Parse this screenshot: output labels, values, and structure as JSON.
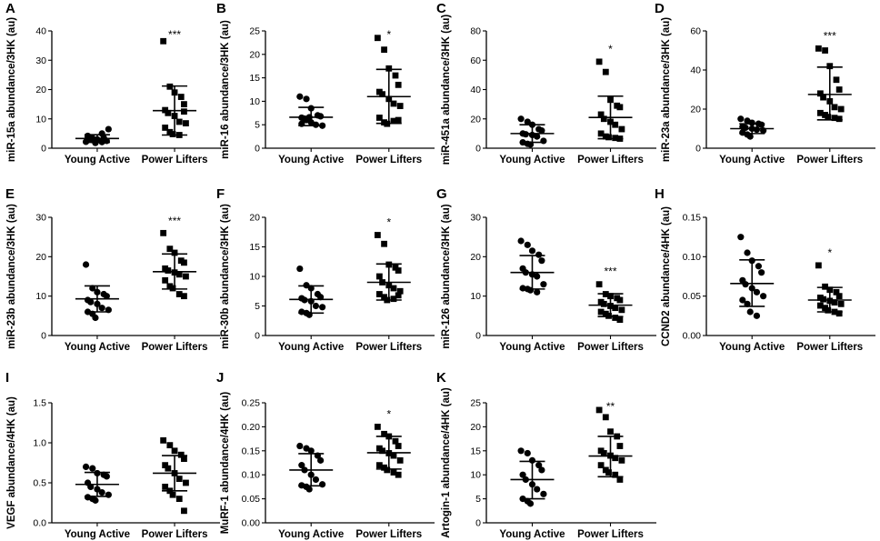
{
  "chart_data": [
    {
      "panel": "A",
      "type": "scatter",
      "ylabel": "miR-15a abundance/3HK (au)",
      "ylim": [
        0,
        40
      ],
      "yticks": [
        "0",
        "10",
        "20",
        "30",
        "40"
      ],
      "categories": [
        "Young Active",
        "Power Lifters"
      ],
      "series": [
        {
          "name": "Young Active",
          "marker": "circle",
          "values": [
            2.2,
            2.8,
            3.0,
            3.5,
            2.5,
            4.0,
            3.2,
            2.7,
            5.0,
            6.5,
            4.2,
            3.4,
            1.8,
            2.1
          ],
          "mean": 3.3,
          "sd_lower": 2.0,
          "sd_upper": 4.6
        },
        {
          "name": "Power Lifters",
          "marker": "square",
          "values": [
            36.5,
            21.0,
            19.0,
            17.5,
            15.0,
            13.0,
            12.0,
            11.0,
            9.0,
            8.5,
            7.0,
            5.5,
            4.8,
            4.5,
            12.5
          ],
          "mean": 12.8,
          "sd_lower": 4.5,
          "sd_upper": 21.2
        }
      ],
      "significance": "***"
    },
    {
      "panel": "B",
      "type": "scatter",
      "ylabel": "miR-16 abundance/3HK (au)",
      "ylim": [
        0,
        25
      ],
      "yticks": [
        "0",
        "5",
        "10",
        "15",
        "20",
        "25"
      ],
      "categories": [
        "Young Active",
        "Power Lifters"
      ],
      "series": [
        {
          "name": "Young Active",
          "marker": "circle",
          "values": [
            11.0,
            10.5,
            8.5,
            7.0,
            6.8,
            6.5,
            6.3,
            5.5,
            5.0,
            4.8,
            5.2,
            6.0,
            6.6
          ],
          "mean": 6.6,
          "sd_lower": 4.8,
          "sd_upper": 8.7
        },
        {
          "name": "Power Lifters",
          "marker": "square",
          "values": [
            23.5,
            21.0,
            17.0,
            15.5,
            13.5,
            12.0,
            11.5,
            10.5,
            9.5,
            9.0,
            6.5,
            5.5,
            5.2,
            5.8,
            6.0
          ],
          "mean": 11.0,
          "sd_lower": 5.3,
          "sd_upper": 16.8
        }
      ],
      "significance": "*"
    },
    {
      "panel": "C",
      "type": "scatter",
      "ylabel": "miR-451a abundance/3HK (au)",
      "ylim": [
        0,
        80
      ],
      "yticks": [
        "0",
        "20",
        "40",
        "60",
        "80"
      ],
      "categories": [
        "Young Active",
        "Power Lifters"
      ],
      "series": [
        {
          "name": "Young Active",
          "marker": "circle",
          "values": [
            20.0,
            18.0,
            16.0,
            13.0,
            12.0,
            10.0,
            9.5,
            9.0,
            8.0,
            5.0,
            4.0,
            3.0,
            2.5
          ],
          "mean": 10.0,
          "sd_lower": 4.0,
          "sd_upper": 16.0
        },
        {
          "name": "Power Lifters",
          "marker": "square",
          "values": [
            59.0,
            52.0,
            33.0,
            29.0,
            28.0,
            23.0,
            20.0,
            18.0,
            16.0,
            13.0,
            10.0,
            8.0,
            7.5,
            7.0,
            6.5
          ],
          "mean": 21.0,
          "sd_lower": 6.5,
          "sd_upper": 35.5
        }
      ],
      "significance": "*"
    },
    {
      "panel": "D",
      "type": "scatter",
      "ylabel": "miR-23a abundance/3HK (au)",
      "ylim": [
        0,
        60
      ],
      "yticks": [
        "0",
        "20",
        "40",
        "60"
      ],
      "categories": [
        "Young Active",
        "Power Lifters"
      ],
      "series": [
        {
          "name": "Young Active",
          "marker": "circle",
          "values": [
            15.0,
            14.0,
            13.0,
            12.5,
            12.0,
            11.0,
            10.5,
            10.0,
            9.5,
            9.0,
            8.0,
            7.0,
            6.0
          ],
          "mean": 10.0,
          "sd_lower": 7.5,
          "sd_upper": 12.5
        },
        {
          "name": "Power Lifters",
          "marker": "square",
          "values": [
            51.0,
            50.0,
            42.0,
            35.0,
            30.0,
            28.0,
            26.0,
            24.0,
            21.0,
            20.0,
            18.0,
            17.0,
            16.0,
            15.5,
            15.0
          ],
          "mean": 27.5,
          "sd_lower": 14.5,
          "sd_upper": 41.5
        }
      ],
      "significance": "***"
    },
    {
      "panel": "E",
      "type": "scatter",
      "ylabel": "miR-23b abundance/3HK (au)",
      "ylim": [
        0,
        30
      ],
      "yticks": [
        "0",
        "10",
        "20",
        "30"
      ],
      "categories": [
        "Young Active",
        "Power Lifters"
      ],
      "series": [
        {
          "name": "Young Active",
          "marker": "circle",
          "values": [
            18.0,
            12.0,
            11.0,
            10.5,
            10.0,
            9.0,
            8.5,
            8.0,
            7.0,
            6.5,
            6.0,
            5.5,
            4.5
          ],
          "mean": 9.3,
          "sd_lower": 6.0,
          "sd_upper": 12.6
        },
        {
          "name": "Power Lifters",
          "marker": "square",
          "values": [
            26.0,
            22.0,
            21.0,
            19.0,
            18.5,
            17.0,
            16.5,
            16.0,
            15.5,
            15.0,
            14.0,
            12.5,
            12.0,
            10.5,
            10.0
          ],
          "mean": 16.2,
          "sd_lower": 11.8,
          "sd_upper": 20.7
        }
      ],
      "significance": "***"
    },
    {
      "panel": "F",
      "type": "scatter",
      "ylabel": "miR-30b abundance/3HK (au)",
      "ylim": [
        0,
        20
      ],
      "yticks": [
        "0",
        "5",
        "10",
        "15",
        "20"
      ],
      "categories": [
        "Young Active",
        "Power Lifters"
      ],
      "series": [
        {
          "name": "Young Active",
          "marker": "circle",
          "values": [
            11.3,
            8.5,
            8.0,
            7.0,
            6.5,
            6.3,
            6.0,
            5.8,
            5.0,
            4.8,
            4.0,
            3.8,
            3.5
          ],
          "mean": 6.1,
          "sd_lower": 3.8,
          "sd_upper": 8.4
        },
        {
          "name": "Power Lifters",
          "marker": "square",
          "values": [
            17.0,
            15.5,
            12.0,
            11.5,
            11.0,
            10.0,
            9.0,
            8.5,
            8.0,
            7.5,
            7.0,
            6.5,
            6.0,
            6.2,
            6.8
          ],
          "mean": 9.0,
          "sd_lower": 6.0,
          "sd_upper": 12.1
        }
      ],
      "significance": "*"
    },
    {
      "panel": "G",
      "type": "scatter",
      "ylabel": "miR-126 abundance/3HK (au)",
      "ylim": [
        0,
        30
      ],
      "yticks": [
        "0",
        "10",
        "20",
        "30"
      ],
      "categories": [
        "Young Active",
        "Power Lifters"
      ],
      "series": [
        {
          "name": "Young Active",
          "marker": "circle",
          "values": [
            24.0,
            23.0,
            21.5,
            20.5,
            19.0,
            17.0,
            16.0,
            15.5,
            15.0,
            13.0,
            12.0,
            11.8,
            11.5,
            11.0
          ],
          "mean": 16.0,
          "sd_lower": 11.8,
          "sd_upper": 20.3
        },
        {
          "name": "Power Lifters",
          "marker": "square",
          "values": [
            13.0,
            10.5,
            10.0,
            9.5,
            9.0,
            8.5,
            8.0,
            7.5,
            7.0,
            6.5,
            6.0,
            5.5,
            5.0,
            4.5,
            4.0
          ],
          "mean": 7.7,
          "sd_lower": 4.8,
          "sd_upper": 10.6
        }
      ],
      "significance": "***"
    },
    {
      "panel": "H",
      "type": "scatter",
      "ylabel": "CCND2 abundance/4HK (au)",
      "ylim": [
        0,
        0.15
      ],
      "yticks": [
        "0.00",
        "0.05",
        "0.10",
        "0.15"
      ],
      "categories": [
        "Young Active",
        "Power Lifters"
      ],
      "series": [
        {
          "name": "Young Active",
          "marker": "circle",
          "values": [
            0.125,
            0.105,
            0.095,
            0.088,
            0.08,
            0.07,
            0.065,
            0.06,
            0.055,
            0.05,
            0.045,
            0.04,
            0.03,
            0.025
          ],
          "mean": 0.066,
          "sd_lower": 0.037,
          "sd_upper": 0.096
        },
        {
          "name": "Power Lifters",
          "marker": "square",
          "values": [
            0.089,
            0.062,
            0.058,
            0.055,
            0.05,
            0.048,
            0.046,
            0.044,
            0.042,
            0.04,
            0.038,
            0.035,
            0.032,
            0.03,
            0.028
          ],
          "mean": 0.045,
          "sd_lower": 0.03,
          "sd_upper": 0.061
        }
      ],
      "significance": "*"
    },
    {
      "panel": "I",
      "type": "scatter",
      "ylabel": "VEGF abundance/4HK (au)",
      "ylim": [
        0,
        1.5
      ],
      "yticks": [
        "0.0",
        "0.5",
        "1.0",
        "1.5"
      ],
      "categories": [
        "Young Active",
        "Power Lifters"
      ],
      "series": [
        {
          "name": "Young Active",
          "marker": "circle",
          "values": [
            0.7,
            0.68,
            0.62,
            0.6,
            0.58,
            0.5,
            0.45,
            0.42,
            0.38,
            0.35,
            0.32,
            0.3,
            0.28
          ],
          "mean": 0.48,
          "sd_lower": 0.33,
          "sd_upper": 0.63
        },
        {
          "name": "Power Lifters",
          "marker": "square",
          "values": [
            1.03,
            0.97,
            0.9,
            0.85,
            0.8,
            0.72,
            0.68,
            0.62,
            0.55,
            0.5,
            0.45,
            0.4,
            0.35,
            0.3,
            0.15
          ],
          "mean": 0.62,
          "sd_lower": 0.4,
          "sd_upper": 0.84
        }
      ],
      "significance": ""
    },
    {
      "panel": "J",
      "type": "scatter",
      "ylabel": "MuRF-1 abundance/4HK (au)",
      "ylim": [
        0,
        0.25
      ],
      "yticks": [
        "0.00",
        "0.05",
        "0.10",
        "0.15",
        "0.20",
        "0.25"
      ],
      "categories": [
        "Young Active",
        "Power Lifters"
      ],
      "series": [
        {
          "name": "Young Active",
          "marker": "circle",
          "values": [
            0.16,
            0.155,
            0.15,
            0.14,
            0.13,
            0.12,
            0.11,
            0.1,
            0.09,
            0.08,
            0.078,
            0.075,
            0.07
          ],
          "mean": 0.11,
          "sd_lower": 0.077,
          "sd_upper": 0.144
        },
        {
          "name": "Power Lifters",
          "marker": "square",
          "values": [
            0.2,
            0.185,
            0.18,
            0.17,
            0.16,
            0.155,
            0.15,
            0.145,
            0.14,
            0.13,
            0.12,
            0.115,
            0.11,
            0.105,
            0.1
          ],
          "mean": 0.146,
          "sd_lower": 0.112,
          "sd_upper": 0.18
        }
      ],
      "significance": "*"
    },
    {
      "panel": "K",
      "type": "scatter",
      "ylabel": "Artogin-1 abundance/4HK (au)",
      "ylim": [
        0,
        25
      ],
      "yticks": [
        "0",
        "5",
        "10",
        "15",
        "20",
        "25"
      ],
      "categories": [
        "Young Active",
        "Power Lifters"
      ],
      "series": [
        {
          "name": "Young Active",
          "marker": "circle",
          "values": [
            15.0,
            14.5,
            13.0,
            12.0,
            11.0,
            10.0,
            9.0,
            8.0,
            7.0,
            6.0,
            5.0,
            4.5,
            4.0
          ],
          "mean": 9.0,
          "sd_lower": 5.0,
          "sd_upper": 12.8
        },
        {
          "name": "Power Lifters",
          "marker": "square",
          "values": [
            23.5,
            22.0,
            19.0,
            18.0,
            16.0,
            15.0,
            14.5,
            14.0,
            13.5,
            13.0,
            12.0,
            11.0,
            10.5,
            10.0,
            9.0
          ],
          "mean": 13.9,
          "sd_lower": 9.6,
          "sd_upper": 18.0
        }
      ],
      "significance": "**"
    }
  ]
}
